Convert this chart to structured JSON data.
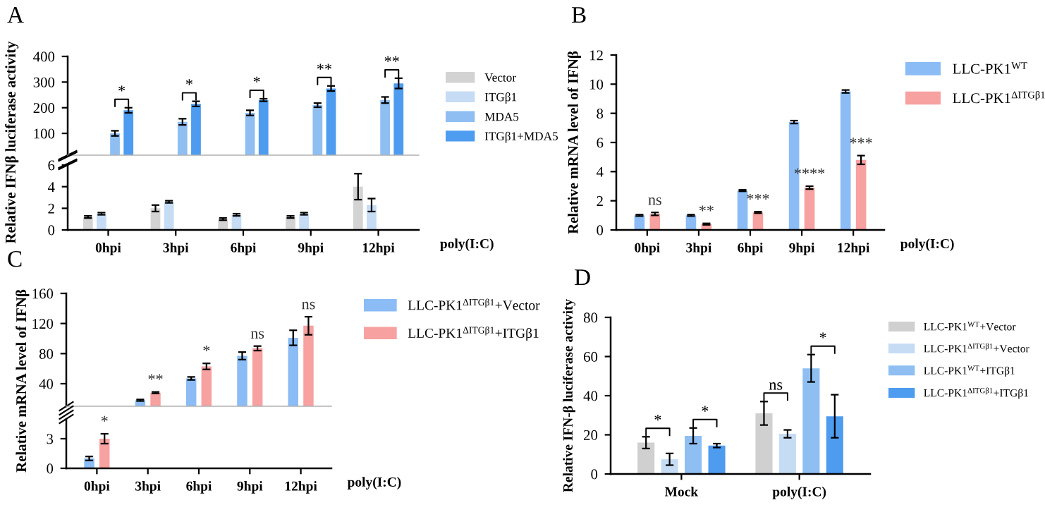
{
  "chart_data": [
    {
      "type": "bar",
      "title": "A",
      "ylabel": "Relative IFNβ luciferase activity",
      "categories": [
        null,
        null,
        null,
        null,
        null
      ],
      "series": [
        {
          "name": "MDA5",
          "color": "#8fbff2",
          "values": [
            100,
            145,
            180,
            210,
            230
          ],
          "errors": [
            10,
            12,
            10,
            8,
            12
          ]
        },
        {
          "name": "ITGβ1+MDA5",
          "color": "#4e9cf0",
          "values": [
            190,
            215,
            230,
            275,
            295
          ],
          "errors": [
            10,
            10,
            5,
            10,
            20
          ]
        }
      ],
      "ylim": [
        15,
        400
      ],
      "yticks": [
        100,
        200,
        300,
        400
      ],
      "legend": "right",
      "tick_labels": "y",
      "annotations": [
        "*",
        "*",
        "*",
        "**",
        "**"
      ]
    },
    {
      "type": "bar",
      "xlabel": "poly(I:C)",
      "categories": [
        "0hpi",
        "3hpi",
        "6hpi",
        "9hpi",
        "12hpi"
      ],
      "series": [
        {
          "name": "Vector",
          "color": "#d3d3d3",
          "values": [
            1.2,
            2.0,
            1.0,
            1.2,
            4.0
          ],
          "errors": [
            0.1,
            0.3,
            0.1,
            0.1,
            1.2
          ]
        },
        {
          "name": "ITGβ1",
          "color": "#c6dcf5",
          "values": [
            1.5,
            2.6,
            1.4,
            1.5,
            2.3
          ],
          "errors": [
            0.1,
            0.1,
            0.1,
            0.1,
            0.6
          ]
        }
      ],
      "ylim": [
        0,
        6
      ],
      "yticks": [
        0,
        2,
        4,
        6
      ],
      "legend": "top right"
    },
    {
      "type": "bar",
      "title": "B",
      "ylabel": "Relative mRNA level of IFNβ",
      "xlabel": "poly(I:C)",
      "categories": [
        "0hpi",
        "3hpi",
        "6hpi",
        "9hpi",
        "12hpi"
      ],
      "series": [
        {
          "name": "LLC-PK1$^{WT}$",
          "color": "#8bbcf5",
          "values": [
            1.0,
            1.0,
            2.7,
            7.4,
            9.5
          ],
          "errors": [
            0.05,
            0.05,
            0.05,
            0.1,
            0.1
          ]
        },
        {
          "name": "LLC-PK1$^{ΔITGβ1}$",
          "color": "#f7a1a1",
          "values": [
            1.1,
            0.4,
            1.2,
            2.9,
            4.8
          ],
          "errors": [
            0.1,
            0.05,
            0.05,
            0.1,
            0.3
          ]
        }
      ],
      "ylim": [
        0,
        12
      ],
      "yticks": [
        0,
        2,
        4,
        6,
        8,
        10,
        12
      ],
      "legend": "top right",
      "annotations": [
        "ns",
        "**",
        "***",
        "****",
        "***"
      ]
    },
    {
      "type": "bar",
      "title": "C",
      "ylabel": "Relative mRNA level of IFNβ",
      "categories": [
        null,
        null,
        null,
        null
      ],
      "series": [
        {
          "name": "LLC-PK1$^{ΔITGβ1}$+Vector",
          "color": "#8bbcf5",
          "values": [
            18,
            47,
            77,
            101
          ],
          "errors": [
            1,
            2,
            5,
            10
          ]
        },
        {
          "name": "LLC-PK1$^{ΔITGβ1}$+ITGβ1",
          "color": "#f7a1a1",
          "values": [
            28,
            63,
            87,
            117
          ],
          "errors": [
            1,
            4,
            3,
            12
          ]
        }
      ],
      "ylim": [
        10,
        160
      ],
      "yticks": [
        40,
        80,
        120,
        160
      ],
      "legend": "top right",
      "tick_labels": "y",
      "annotations": [
        "**",
        "*",
        "ns",
        "ns"
      ]
    },
    {
      "type": "bar",
      "xlabel": "poly(I:C)",
      "categories": [
        "0hpi",
        "3hpi",
        "6hpi",
        "9hpi",
        "12hpi"
      ],
      "series": [
        {
          "color": "#8bbcf5",
          "values": [
            1.0,
            null,
            null,
            null,
            null
          ],
          "errors": [
            0.2,
            null,
            null,
            null,
            null
          ]
        },
        {
          "color": "#f7a1a1",
          "values": [
            3,
            null,
            null,
            null,
            null
          ],
          "errors": [
            0.5,
            null,
            null,
            null,
            null
          ]
        }
      ],
      "ylim": [
        0,
        5
      ],
      "yticks": [
        0,
        3
      ],
      "annotations": [
        "*"
      ]
    },
    {
      "type": "bar",
      "title": "D",
      "ylabel": "Relative IFN-β luciferase activity",
      "categories": [
        "Mock",
        "poly(I:C)"
      ],
      "series": [
        {
          "name": "LLC-PK1$^{WT}$+Vector",
          "color": "#d0d0d0",
          "values": [
            16,
            31
          ],
          "errors": [
            3,
            6
          ]
        },
        {
          "name": "LLC-PK1$^{ΔITGβ1}$+Vector",
          "color": "#c6dcf5",
          "values": [
            7.5,
            20.5
          ],
          "errors": [
            3,
            2
          ]
        },
        {
          "name": "LLC-PK1$^{WT}$+ITGβ1",
          "color": "#8fbff2",
          "values": [
            19.5,
            54
          ],
          "errors": [
            4,
            7
          ]
        },
        {
          "name": "LLC-PK1$^{ΔITGβ1}$+ITGβ1",
          "color": "#4e9cf0",
          "values": [
            14.5,
            29.5
          ],
          "errors": [
            1,
            11
          ]
        }
      ],
      "ylim": [
        0,
        80
      ],
      "yticks": [
        0,
        20,
        40,
        60,
        80
      ],
      "legend": "top right",
      "annotations": [
        "*",
        "*",
        "ns",
        "*"
      ]
    }
  ]
}
